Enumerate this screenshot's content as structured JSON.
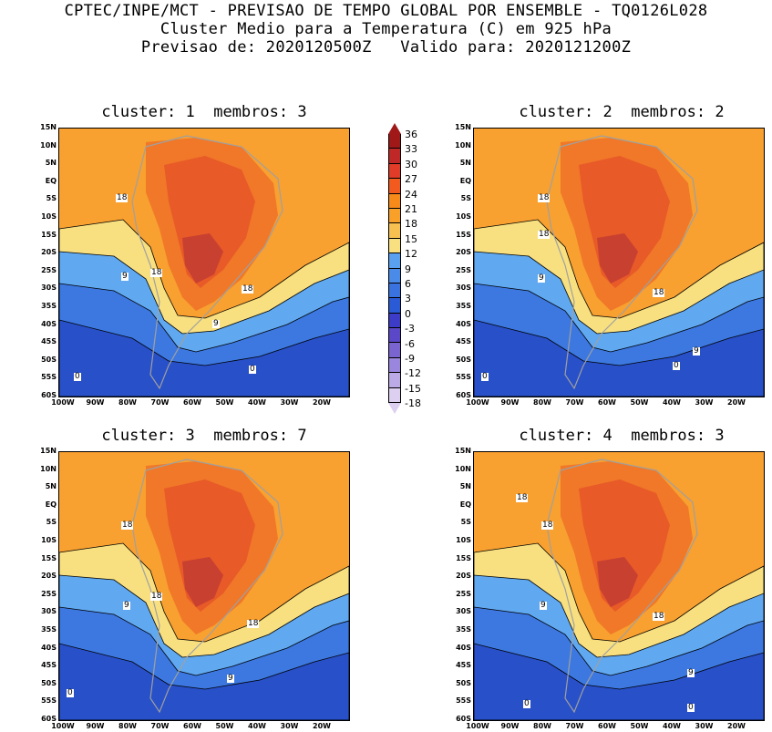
{
  "header": {
    "line1": "CPTEC/INPE/MCT - PREVISAO DE TEMPO GLOBAL POR ENSEMBLE - TQ0126L028",
    "line2": "Cluster Medio para a Temperatura (C) em 925 hPa",
    "line3": "Previsao de: 2020120500Z   Valido para: 2020121200Z"
  },
  "panels": [
    {
      "title": "cluster: 1  membros: 3",
      "contour_labels": [
        "18",
        "18",
        "18",
        "9",
        "9",
        "0",
        "0"
      ]
    },
    {
      "title": "cluster: 2  membros: 2",
      "contour_labels": [
        "18",
        "18",
        "18",
        "9",
        "9",
        "0",
        "0"
      ]
    },
    {
      "title": "cluster: 3  membros: 7",
      "contour_labels": [
        "18",
        "18",
        "18",
        "9",
        "9",
        "0"
      ]
    },
    {
      "title": "cluster: 4  membros: 3",
      "contour_labels": [
        "18",
        "18",
        "18",
        "9",
        "9",
        "0",
        "0"
      ]
    }
  ],
  "axes": {
    "lat_labels": [
      "15N",
      "10N",
      "5N",
      "EQ",
      "5S",
      "10S",
      "15S",
      "20S",
      "25S",
      "30S",
      "35S",
      "40S",
      "45S",
      "50S",
      "55S",
      "60S"
    ],
    "lon_labels": [
      "100W",
      "90W",
      "80W",
      "70W",
      "60W",
      "50W",
      "40W",
      "30W",
      "20W"
    ]
  },
  "colorbar": {
    "labels": [
      "36",
      "33",
      "30",
      "27",
      "24",
      "21",
      "18",
      "15",
      "12",
      "9",
      "6",
      "3",
      "0",
      "-3",
      "-6",
      "-9",
      "-12",
      "-15",
      "-18"
    ],
    "colors": [
      "#a01818",
      "#c02828",
      "#e03c28",
      "#f25a1e",
      "#f88a1a",
      "#f8a028",
      "#f8c050",
      "#f8e080",
      "#5aa0f0",
      "#4a8ae8",
      "#3a72e0",
      "#2a5ad6",
      "#3c3cc8",
      "#5a48c8",
      "#7a64d0",
      "#9a86dc",
      "#bcaae6",
      "#dccff0"
    ]
  },
  "colors": {
    "hot_core": "#c84030",
    "warm": "#f07828",
    "orange": "#f8a030",
    "yellow": "#f8e080",
    "light_blue": "#60a8f0",
    "mid_blue": "#3c78e0",
    "deep_blue": "#2850c8",
    "violet": "#5a48c8",
    "land_outline": "#a0a0a0"
  }
}
